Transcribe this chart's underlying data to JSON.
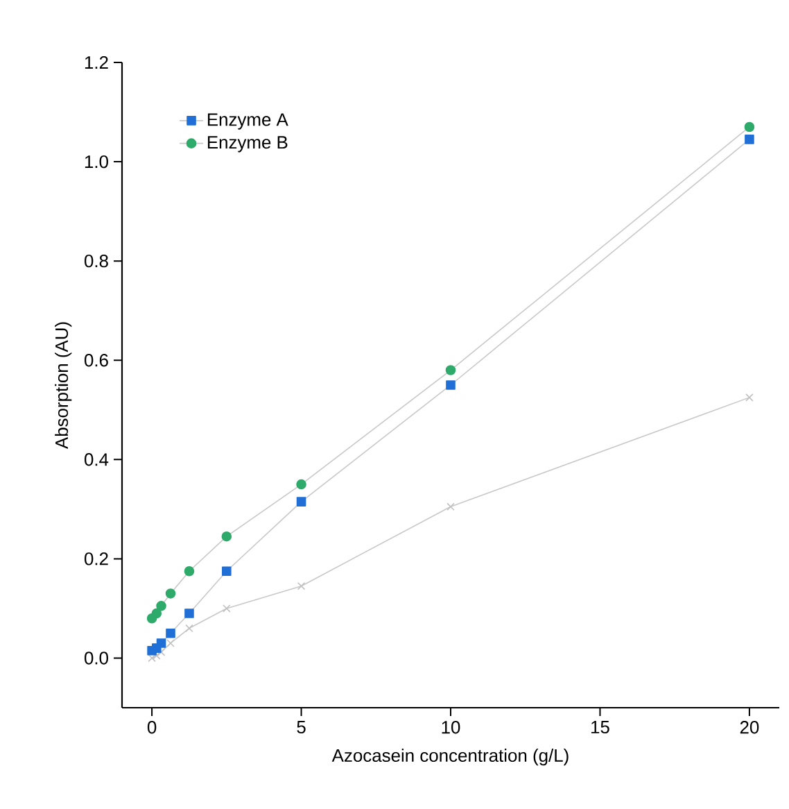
{
  "chart_data": {
    "type": "line",
    "xlabel": "Azocasein concentration (g/L)",
    "ylabel": "Absorption (AU)",
    "xlim": [
      -1,
      21
    ],
    "ylim": [
      -0.1,
      1.2
    ],
    "xticks": [
      0,
      5,
      10,
      15,
      20
    ],
    "yticks": [
      {
        "value": 0,
        "label": "0.0"
      },
      {
        "value": 0.2,
        "label": "0.2"
      },
      {
        "value": 0.4,
        "label": "0.4"
      },
      {
        "value": 0.6,
        "label": "0.6"
      },
      {
        "value": 0.8,
        "label": "0.8"
      },
      {
        "value": 1.0,
        "label": "1.0"
      },
      {
        "value": 1.2,
        "label": "1.2"
      }
    ],
    "legend": "top left",
    "grid": false,
    "x": [
      0,
      0.156,
      0.3125,
      0.625,
      1.25,
      2.5,
      5,
      10,
      20
    ],
    "series": [
      {
        "color": "#c0c0c0",
        "marker": "cross",
        "values": [
          0.0,
          0.005,
          0.012,
          0.03,
          0.06,
          0.1,
          0.145,
          0.305,
          0.525
        ]
      },
      {
        "name": "Enzyme A",
        "color": "#1f6fd6",
        "marker": "square",
        "values": [
          0.015,
          0.02,
          0.03,
          0.05,
          0.09,
          0.175,
          0.315,
          0.55,
          1.045
        ]
      },
      {
        "name": "Enzyme B",
        "color": "#2eaa6a",
        "marker": "circle",
        "values": [
          0.08,
          0.09,
          0.105,
          0.13,
          0.175,
          0.245,
          0.35,
          0.58,
          1.07
        ]
      }
    ]
  }
}
